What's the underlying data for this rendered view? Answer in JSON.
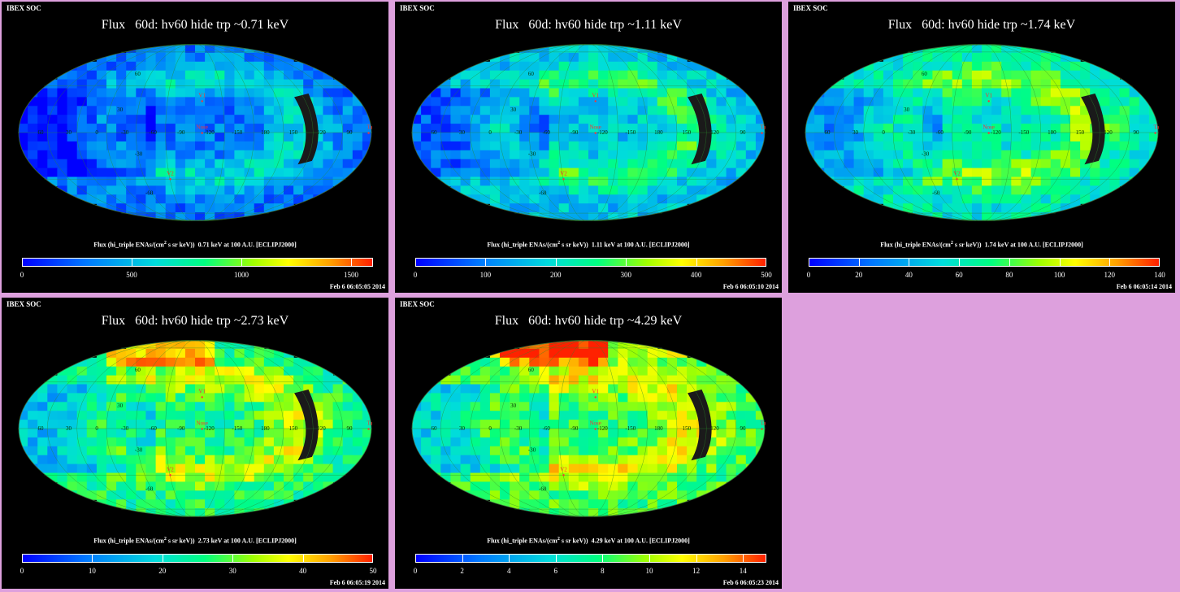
{
  "common": {
    "header": "IBEX SOC",
    "marker_labels": {
      "v1": "V1",
      "v2": "V2",
      "nose": "Nose",
      "tail": "Tail"
    },
    "colors": {
      "nose": "#ff3030",
      "tail": "#ff3030",
      "v": "#ff3030",
      "grid": "#00ff00",
      "void": "#1a1a1a",
      "background": "#000000",
      "frame": "#dda0dd"
    }
  },
  "panels": [
    {
      "title": "Flux   60d: hv60 hide trp ~0.71 keV",
      "caption_pre": "Flux (hi_triple ENAs/(cm",
      "caption_sup": "2",
      "caption_post": " s sr keV))  0.71 keV at 100 A.U. [ECLIPJ2000]",
      "timestamp": "Feb  6 06:05:05 2014",
      "lon_labels": [
        "60",
        "30",
        "0",
        "-30",
        "-60",
        "-90",
        "-120",
        "-150",
        "180",
        "150",
        "120",
        "90"
      ],
      "lat_labels": [
        "60",
        "30",
        "-30",
        "-60"
      ],
      "chart_data": {
        "type": "heatmap",
        "colorbar_range": [
          0,
          1600
        ],
        "colorbar_ticks": [
          0,
          500,
          1000,
          1500
        ],
        "energy_keV": 0.71,
        "projection": "mollweide"
      }
    },
    {
      "title": "Flux   60d: hv60 hide trp ~1.11 keV",
      "caption_pre": "Flux (hi_triple ENAs/(cm",
      "caption_sup": "2",
      "caption_post": " s sr keV))  1.11 keV at 100 A.U. [ECLIPJ2000]",
      "timestamp": "Feb  6 06:05:10 2014",
      "lon_labels": [
        "60",
        "30",
        "0",
        "-30",
        "-60",
        "-90",
        "-120",
        "-150",
        "180",
        "150",
        "120",
        "90"
      ],
      "lat_labels": [
        "60",
        "30",
        "-30",
        "-60"
      ],
      "chart_data": {
        "type": "heatmap",
        "colorbar_range": [
          0,
          500
        ],
        "colorbar_ticks": [
          0,
          100,
          200,
          300,
          400,
          500
        ],
        "energy_keV": 1.11,
        "projection": "mollweide"
      }
    },
    {
      "title": "Flux   60d: hv60 hide trp ~1.74 keV",
      "caption_pre": "Flux (hi_triple ENAs/(cm",
      "caption_sup": "2",
      "caption_post": " s sr keV))  1.74 keV at 100 A.U. [ECLIPJ2000]",
      "timestamp": "Feb  6 06:05:14 2014",
      "lon_labels": [
        "60",
        "30",
        "0",
        "-30",
        "-60",
        "-90",
        "-120",
        "-150",
        "180",
        "150",
        "120",
        "90"
      ],
      "lat_labels": [
        "60",
        "30",
        "-30",
        "-60"
      ],
      "chart_data": {
        "type": "heatmap",
        "colorbar_range": [
          0,
          140
        ],
        "colorbar_ticks": [
          0,
          20,
          40,
          60,
          80,
          100,
          120,
          140
        ],
        "energy_keV": 1.74,
        "projection": "mollweide"
      }
    },
    {
      "title": "Flux   60d: hv60 hide trp ~2.73 keV",
      "caption_pre": "Flux (hi_triple ENAs/(cm",
      "caption_sup": "2",
      "caption_post": " s sr keV))  2.73 keV at 100 A.U. [ECLIPJ2000]",
      "timestamp": "Feb  6 06:05:19 2014",
      "lon_labels": [
        "60",
        "30",
        "0",
        "-30",
        "-60",
        "-90",
        "-120",
        "-150",
        "180",
        "150",
        "120",
        "90"
      ],
      "lat_labels": [
        "60",
        "30",
        "-30",
        "-60"
      ],
      "chart_data": {
        "type": "heatmap",
        "colorbar_range": [
          0,
          50
        ],
        "colorbar_ticks": [
          0,
          10,
          20,
          30,
          40,
          50
        ],
        "energy_keV": 2.73,
        "projection": "mollweide"
      }
    },
    {
      "title": "Flux   60d: hv60 hide trp ~4.29 keV",
      "caption_pre": "Flux (hi_triple ENAs/(cm",
      "caption_sup": "2",
      "caption_post": " s sr keV))  4.29 keV at 100 A.U. [ECLIPJ2000]",
      "timestamp": "Feb  6 06:05:23 2014",
      "lon_labels": [
        "60",
        "30",
        "0",
        "-30",
        "-60",
        "-90",
        "-120",
        "-150",
        "180",
        "150",
        "120",
        "90"
      ],
      "lat_labels": [
        "60",
        "30",
        "-30",
        "-60"
      ],
      "chart_data": {
        "type": "heatmap",
        "colorbar_range": [
          0,
          15
        ],
        "colorbar_ticks": [
          0,
          2,
          4,
          6,
          8,
          10,
          12,
          14
        ],
        "energy_keV": 4.29,
        "projection": "mollweide"
      }
    }
  ]
}
